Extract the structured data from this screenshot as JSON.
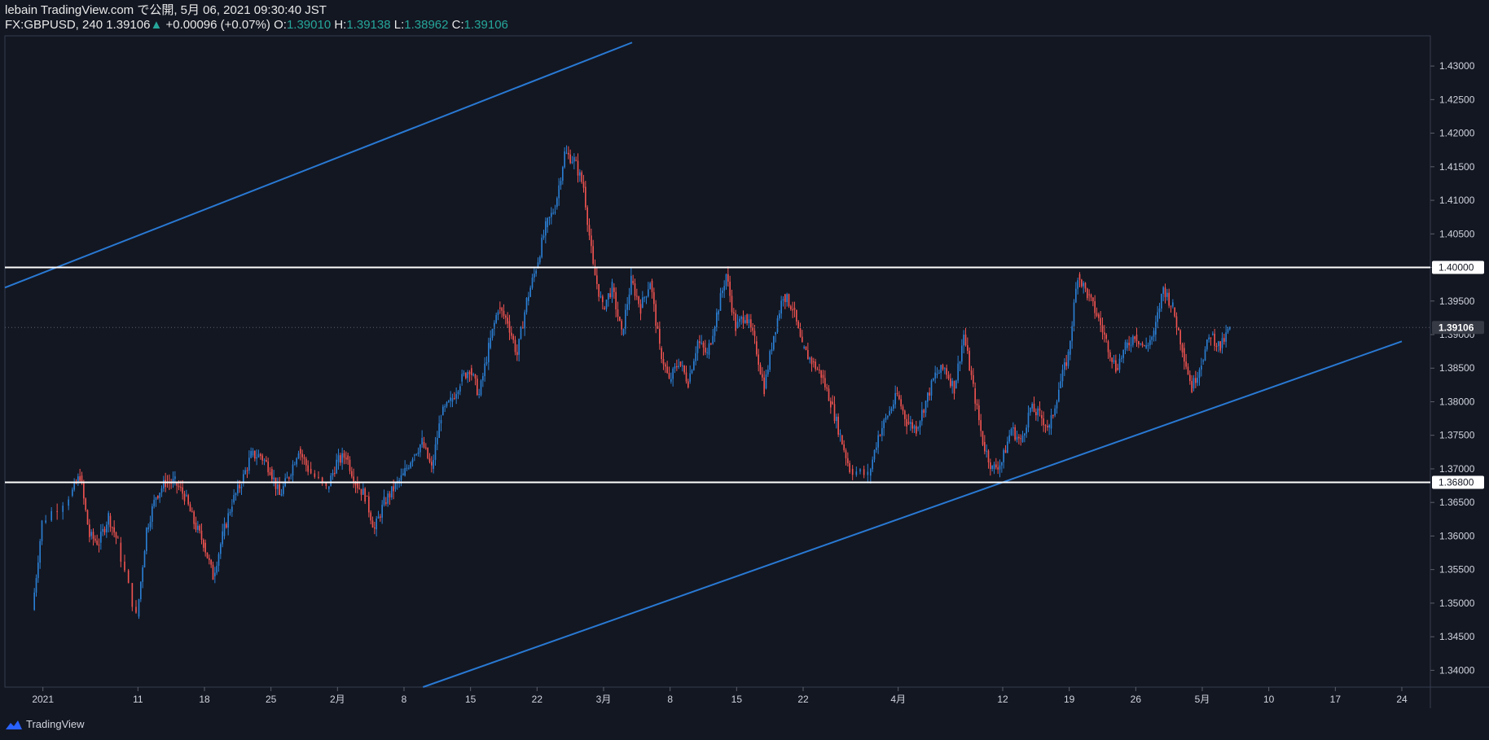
{
  "header": {
    "line1": "lebain TradingView.com で公開, 5月 06, 2021 09:30:40 JST",
    "symbol_interval": "FX:GBPUSD, 240",
    "last": "1.39106",
    "change": "+0.00096 (+0.07%)",
    "open_label": "O:",
    "open": "1.39010",
    "high_label": "H:",
    "high": "1.39138",
    "low_label": "L:",
    "low": "1.38962",
    "close_label": "C:",
    "close": "1.39106"
  },
  "footer": {
    "brand": "TradingView",
    "logo_icon": "tradingview-logo-icon"
  },
  "colors": {
    "background": "#131722",
    "up": "#2b7fd4",
    "down": "#ef5350",
    "channel": "#2979d3",
    "level": "#ffffff",
    "axis_text": "#d1d4dc",
    "green": "#26a69a"
  },
  "chart_data": {
    "type": "candlestick",
    "ylim": [
      1.3375,
      1.4345
    ],
    "ytick_values": [
      1.34,
      1.345,
      1.35,
      1.355,
      1.36,
      1.365,
      1.37,
      1.375,
      1.38,
      1.385,
      1.39,
      1.395,
      1.4,
      1.405,
      1.41,
      1.415,
      1.42,
      1.425,
      1.43
    ],
    "ytick_labels": [
      "1.34000",
      "1.34500",
      "1.35000",
      "1.35500",
      "1.36000",
      "1.36500",
      "1.37000",
      "1.37500",
      "1.38000",
      "1.38500",
      "1.39000",
      "1.39500",
      "1.40000",
      "1.40500",
      "1.41000",
      "1.41500",
      "1.42000",
      "1.42500",
      "1.43000"
    ],
    "xticks": [
      {
        "date": "2021-01-01",
        "label": "2021"
      },
      {
        "date": "2021-01-11",
        "label": "11"
      },
      {
        "date": "2021-01-18",
        "label": "18"
      },
      {
        "date": "2021-01-25",
        "label": "25"
      },
      {
        "date": "2021-02-01",
        "label": "2月"
      },
      {
        "date": "2021-02-08",
        "label": "8"
      },
      {
        "date": "2021-02-15",
        "label": "15"
      },
      {
        "date": "2021-02-22",
        "label": "22"
      },
      {
        "date": "2021-03-01",
        "label": "3月"
      },
      {
        "date": "2021-03-08",
        "label": "8"
      },
      {
        "date": "2021-03-15",
        "label": "15"
      },
      {
        "date": "2021-03-22",
        "label": "22"
      },
      {
        "date": "2021-04-01",
        "label": "4月"
      },
      {
        "date": "2021-04-12",
        "label": "12"
      },
      {
        "date": "2021-04-19",
        "label": "19"
      },
      {
        "date": "2021-04-26",
        "label": "26"
      },
      {
        "date": "2021-05-03",
        "label": "5月"
      },
      {
        "date": "2021-05-10",
        "label": "10"
      },
      {
        "date": "2021-05-17",
        "label": "17"
      },
      {
        "date": "2021-05-24",
        "label": "24"
      }
    ],
    "price_tags": [
      {
        "value": 1.4,
        "label": "1.40000",
        "style": "level"
      },
      {
        "value": 1.39106,
        "label": "1.39106",
        "style": "last"
      },
      {
        "value": 1.368,
        "label": "1.36800",
        "style": "level"
      }
    ],
    "horizontal_levels": [
      1.4,
      1.368
    ],
    "channel_lines": [
      {
        "name": "upper",
        "points": [
          [
            "2020-12-28",
            1.397
          ],
          [
            "2021-03-04",
            1.4335
          ]
        ]
      },
      {
        "name": "lower",
        "points": [
          [
            "2021-02-10",
            1.3375
          ],
          [
            "2021-05-24",
            1.389
          ]
        ]
      }
    ],
    "series_path": [
      [
        "2020-12-31",
        1.349
      ],
      [
        "2021-01-01",
        1.362
      ],
      [
        "2021-01-04",
        1.366
      ],
      [
        "2021-01-05",
        1.369
      ],
      [
        "2021-01-06",
        1.36
      ],
      [
        "2021-01-07",
        1.359
      ],
      [
        "2021-01-08",
        1.363
      ],
      [
        "2021-01-09",
        1.359
      ],
      [
        "2021-01-11",
        1.348
      ],
      [
        "2021-01-12",
        1.361
      ],
      [
        "2021-01-13",
        1.366
      ],
      [
        "2021-01-14",
        1.368
      ],
      [
        "2021-01-15",
        1.368
      ],
      [
        "2021-01-16",
        1.366
      ],
      [
        "2021-01-17",
        1.362
      ],
      [
        "2021-01-18",
        1.359
      ],
      [
        "2021-01-19",
        1.354
      ],
      [
        "2021-01-20",
        1.36
      ],
      [
        "2021-01-21",
        1.365
      ],
      [
        "2021-01-22",
        1.368
      ],
      [
        "2021-01-23",
        1.372
      ],
      [
        "2021-01-24",
        1.372
      ],
      [
        "2021-01-25",
        1.37
      ],
      [
        "2021-01-26",
        1.366
      ],
      [
        "2021-01-27",
        1.369
      ],
      [
        "2021-01-28",
        1.373
      ],
      [
        "2021-01-29",
        1.37
      ],
      [
        "2021-01-31",
        1.367
      ],
      [
        "2021-02-01",
        1.371
      ],
      [
        "2021-02-02",
        1.372
      ],
      [
        "2021-02-03",
        1.368
      ],
      [
        "2021-02-04",
        1.366
      ],
      [
        "2021-02-05",
        1.361
      ],
      [
        "2021-02-06",
        1.365
      ],
      [
        "2021-02-07",
        1.367
      ],
      [
        "2021-02-08",
        1.369
      ],
      [
        "2021-02-09",
        1.372
      ],
      [
        "2021-02-10",
        1.374
      ],
      [
        "2021-02-11",
        1.37
      ],
      [
        "2021-02-12",
        1.378
      ],
      [
        "2021-02-13",
        1.38
      ],
      [
        "2021-02-14",
        1.383
      ],
      [
        "2021-02-15",
        1.385
      ],
      [
        "2021-02-16",
        1.381
      ],
      [
        "2021-02-17",
        1.388
      ],
      [
        "2021-02-18",
        1.394
      ],
      [
        "2021-02-19",
        1.392
      ],
      [
        "2021-02-20",
        1.387
      ],
      [
        "2021-02-21",
        1.395
      ],
      [
        "2021-02-22",
        1.4
      ],
      [
        "2021-02-23",
        1.406
      ],
      [
        "2021-02-24",
        1.409
      ],
      [
        "2021-02-25",
        1.417
      ],
      [
        "2021-02-26",
        1.416
      ],
      [
        "2021-02-27",
        1.412
      ],
      [
        "2021-02-28",
        1.4
      ],
      [
        "2021-03-01",
        1.394
      ],
      [
        "2021-03-02",
        1.397
      ],
      [
        "2021-03-03",
        1.39
      ],
      [
        "2021-03-04",
        1.398
      ],
      [
        "2021-03-05",
        1.394
      ],
      [
        "2021-03-06",
        1.398
      ],
      [
        "2021-03-07",
        1.388
      ],
      [
        "2021-03-08",
        1.383
      ],
      [
        "2021-03-09",
        1.386
      ],
      [
        "2021-03-10",
        1.383
      ],
      [
        "2021-03-11",
        1.389
      ],
      [
        "2021-03-12",
        1.387
      ],
      [
        "2021-03-13",
        1.393
      ],
      [
        "2021-03-14",
        1.399
      ],
      [
        "2021-03-15",
        1.391
      ],
      [
        "2021-03-16",
        1.393
      ],
      [
        "2021-03-17",
        1.389
      ],
      [
        "2021-03-18",
        1.382
      ],
      [
        "2021-03-19",
        1.39
      ],
      [
        "2021-03-20",
        1.396
      ],
      [
        "2021-03-21",
        1.394
      ],
      [
        "2021-03-22",
        1.388
      ],
      [
        "2021-03-23",
        1.386
      ],
      [
        "2021-03-24",
        1.384
      ],
      [
        "2021-03-25",
        1.38
      ],
      [
        "2021-03-26",
        1.375
      ],
      [
        "2021-03-27",
        1.37
      ],
      [
        "2021-03-29",
        1.369
      ],
      [
        "2021-03-30",
        1.375
      ],
      [
        "2021-03-31",
        1.378
      ],
      [
        "2021-04-01",
        1.381
      ],
      [
        "2021-04-02",
        1.377
      ],
      [
        "2021-04-03",
        1.376
      ],
      [
        "2021-04-04",
        1.38
      ],
      [
        "2021-04-05",
        1.384
      ],
      [
        "2021-04-06",
        1.385
      ],
      [
        "2021-04-07",
        1.382
      ],
      [
        "2021-04-08",
        1.39
      ],
      [
        "2021-04-09",
        1.382
      ],
      [
        "2021-04-10",
        1.374
      ],
      [
        "2021-04-11",
        1.37
      ],
      [
        "2021-04-12",
        1.371
      ],
      [
        "2021-04-13",
        1.376
      ],
      [
        "2021-04-14",
        1.374
      ],
      [
        "2021-04-15",
        1.379
      ],
      [
        "2021-04-16",
        1.378
      ],
      [
        "2021-04-17",
        1.376
      ],
      [
        "2021-04-18",
        1.382
      ],
      [
        "2021-04-19",
        1.387
      ],
      [
        "2021-04-20",
        1.399
      ],
      [
        "2021-04-21",
        1.396
      ],
      [
        "2021-04-22",
        1.393
      ],
      [
        "2021-04-23",
        1.389
      ],
      [
        "2021-04-24",
        1.385
      ],
      [
        "2021-04-25",
        1.388
      ],
      [
        "2021-04-26",
        1.39
      ],
      [
        "2021-04-27",
        1.388
      ],
      [
        "2021-04-28",
        1.39
      ],
      [
        "2021-04-29",
        1.397
      ],
      [
        "2021-04-30",
        1.394
      ],
      [
        "2021-05-01",
        1.388
      ],
      [
        "2021-05-02",
        1.382
      ],
      [
        "2021-05-03",
        1.386
      ],
      [
        "2021-05-04",
        1.39
      ],
      [
        "2021-05-05",
        1.388
      ],
      [
        "2021-05-06",
        1.391
      ]
    ]
  }
}
